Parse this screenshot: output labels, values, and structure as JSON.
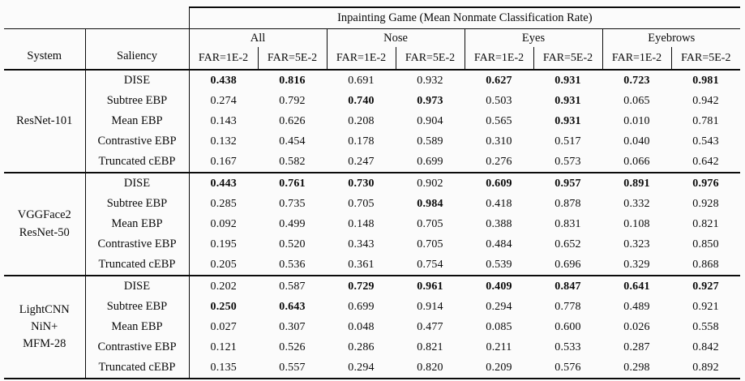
{
  "table": {
    "title": "Inpainting Game (Mean Nonmate Classification Rate)",
    "headers": {
      "system": "System",
      "saliency": "Saliency"
    },
    "groups": [
      "All",
      "Nose",
      "Eyes",
      "Eyebrows"
    ],
    "far_row": [
      "FAR=1E-2",
      "FAR=5E-2",
      "FAR=1E-2",
      "FAR=5E-2",
      "FAR=1E-2",
      "FAR=5E-2",
      "FAR=1E-2",
      "FAR=5E-2"
    ],
    "blocks": [
      {
        "system_lines": [
          "ResNet-101"
        ],
        "rows": [
          {
            "saliency": "DISE",
            "values": [
              "0.438",
              "0.816",
              "0.691",
              "0.932",
              "0.627",
              "0.931",
              "0.723",
              "0.981"
            ],
            "bold": [
              true,
              true,
              false,
              false,
              true,
              true,
              true,
              true
            ]
          },
          {
            "saliency": "Subtree EBP",
            "values": [
              "0.274",
              "0.792",
              "0.740",
              "0.973",
              "0.503",
              "0.931",
              "0.065",
              "0.942"
            ],
            "bold": [
              false,
              false,
              true,
              true,
              false,
              true,
              false,
              false
            ]
          },
          {
            "saliency": "Mean EBP",
            "values": [
              "0.143",
              "0.626",
              "0.208",
              "0.904",
              "0.565",
              "0.931",
              "0.010",
              "0.781"
            ],
            "bold": [
              false,
              false,
              false,
              false,
              false,
              true,
              false,
              false
            ]
          },
          {
            "saliency": "Contrastive EBP",
            "values": [
              "0.132",
              "0.454",
              "0.178",
              "0.589",
              "0.310",
              "0.517",
              "0.040",
              "0.543"
            ],
            "bold": [
              false,
              false,
              false,
              false,
              false,
              false,
              false,
              false
            ]
          },
          {
            "saliency": "Truncated cEBP",
            "values": [
              "0.167",
              "0.582",
              "0.247",
              "0.699",
              "0.276",
              "0.573",
              "0.066",
              "0.642"
            ],
            "bold": [
              false,
              false,
              false,
              false,
              false,
              false,
              false,
              false
            ]
          }
        ]
      },
      {
        "system_lines": [
          "VGGFace2",
          "ResNet-50"
        ],
        "rows": [
          {
            "saliency": "DISE",
            "values": [
              "0.443",
              "0.761",
              "0.730",
              "0.902",
              "0.609",
              "0.957",
              "0.891",
              "0.976"
            ],
            "bold": [
              true,
              true,
              true,
              false,
              true,
              true,
              true,
              true
            ]
          },
          {
            "saliency": "Subtree EBP",
            "values": [
              "0.285",
              "0.735",
              "0.705",
              "0.984",
              "0.418",
              "0.878",
              "0.332",
              "0.928"
            ],
            "bold": [
              false,
              false,
              false,
              true,
              false,
              false,
              false,
              false
            ]
          },
          {
            "saliency": "Mean EBP",
            "values": [
              "0.092",
              "0.499",
              "0.148",
              "0.705",
              "0.388",
              "0.831",
              "0.108",
              "0.821"
            ],
            "bold": [
              false,
              false,
              false,
              false,
              false,
              false,
              false,
              false
            ]
          },
          {
            "saliency": "Contrastive EBP",
            "values": [
              "0.195",
              "0.520",
              "0.343",
              "0.705",
              "0.484",
              "0.652",
              "0.323",
              "0.850"
            ],
            "bold": [
              false,
              false,
              false,
              false,
              false,
              false,
              false,
              false
            ]
          },
          {
            "saliency": "Truncated cEBP",
            "values": [
              "0.205",
              "0.536",
              "0.361",
              "0.754",
              "0.539",
              "0.696",
              "0.329",
              "0.868"
            ],
            "bold": [
              false,
              false,
              false,
              false,
              false,
              false,
              false,
              false
            ]
          }
        ]
      },
      {
        "system_lines": [
          "LightCNN",
          "NiN+",
          "MFM-28"
        ],
        "rows": [
          {
            "saliency": "DISE",
            "values": [
              "0.202",
              "0.587",
              "0.729",
              "0.961",
              "0.409",
              "0.847",
              "0.641",
              "0.927"
            ],
            "bold": [
              false,
              false,
              true,
              true,
              true,
              true,
              true,
              true
            ]
          },
          {
            "saliency": "Subtree EBP",
            "values": [
              "0.250",
              "0.643",
              "0.699",
              "0.914",
              "0.294",
              "0.778",
              "0.489",
              "0.921"
            ],
            "bold": [
              true,
              true,
              false,
              false,
              false,
              false,
              false,
              false
            ]
          },
          {
            "saliency": "Mean EBP",
            "values": [
              "0.027",
              "0.307",
              "0.048",
              "0.477",
              "0.085",
              "0.600",
              "0.026",
              "0.558"
            ],
            "bold": [
              false,
              false,
              false,
              false,
              false,
              false,
              false,
              false
            ]
          },
          {
            "saliency": "Contrastive EBP",
            "values": [
              "0.121",
              "0.526",
              "0.286",
              "0.821",
              "0.211",
              "0.533",
              "0.287",
              "0.842"
            ],
            "bold": [
              false,
              false,
              false,
              false,
              false,
              false,
              false,
              false
            ]
          },
          {
            "saliency": "Truncated cEBP",
            "values": [
              "0.135",
              "0.557",
              "0.294",
              "0.820",
              "0.209",
              "0.576",
              "0.298",
              "0.892"
            ],
            "bold": [
              false,
              false,
              false,
              false,
              false,
              false,
              false,
              false
            ]
          }
        ]
      }
    ]
  }
}
